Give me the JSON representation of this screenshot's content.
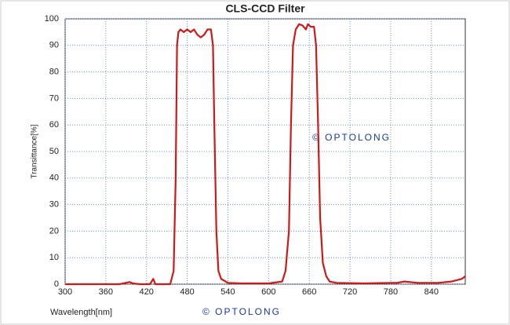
{
  "chart_data": {
    "type": "line",
    "title": "CLS-CCD Filter",
    "xlabel": "Wavelength[nm]",
    "ylabel": "Transittance[%]",
    "annotations": [
      "© OPTOLONG",
      "© OPTOLONG"
    ],
    "x": [
      300,
      380,
      395,
      400,
      410,
      425,
      430,
      433,
      455,
      460,
      463,
      465,
      467,
      470,
      475,
      480,
      485,
      490,
      495,
      500,
      505,
      510,
      515,
      518,
      520,
      523,
      526,
      530,
      540,
      560,
      600,
      620,
      625,
      630,
      633,
      636,
      640,
      645,
      650,
      655,
      658,
      662,
      667,
      670,
      673,
      676,
      680,
      685,
      690,
      700,
      740,
      780,
      790,
      800,
      820,
      850,
      870,
      885,
      890
    ],
    "series": [
      {
        "name": "CLS-CCD",
        "color": "#cc1a1a",
        "values": [
          0,
          0,
          0.8,
          0.3,
          0,
          0,
          2,
          0,
          0,
          5,
          40,
          90,
          95,
          96,
          95,
          96,
          95,
          96,
          94,
          93,
          94,
          96,
          96,
          90,
          60,
          20,
          5,
          2,
          0.5,
          0.3,
          0.3,
          1,
          5,
          20,
          60,
          90,
          96,
          98,
          97.5,
          96,
          98,
          97,
          97,
          90,
          60,
          25,
          8,
          3,
          1,
          0.5,
          0.3,
          0.5,
          0.5,
          1,
          0.5,
          0.5,
          1,
          2,
          3
        ]
      }
    ],
    "xlim": [
      300,
      890
    ],
    "ylim": [
      0,
      100
    ],
    "xticks": [
      300,
      360,
      420,
      480,
      540,
      600,
      660,
      720,
      780,
      840
    ],
    "yticks": [
      0,
      10,
      20,
      30,
      40,
      50,
      60,
      70,
      80,
      90,
      100
    ],
    "grid": true
  }
}
